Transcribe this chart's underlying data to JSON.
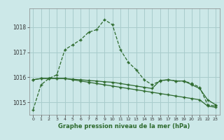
{
  "hours": [
    0,
    1,
    2,
    3,
    4,
    5,
    6,
    7,
    8,
    9,
    10,
    11,
    12,
    13,
    14,
    15,
    16,
    17,
    18,
    19,
    20,
    21,
    22,
    23
  ],
  "line1": [
    1014.7,
    1015.7,
    1015.95,
    1016.1,
    1017.1,
    1017.3,
    1017.5,
    1017.8,
    1017.9,
    1018.3,
    1018.1,
    1017.1,
    1016.6,
    1016.3,
    1015.9,
    1015.7,
    1015.85,
    1015.9,
    1015.85,
    1015.85,
    1015.75,
    1015.6,
    1014.9,
    1014.85
  ],
  "line2": [
    1015.9,
    1015.95,
    1015.95,
    1015.95,
    1015.95,
    1015.92,
    1015.9,
    1015.87,
    1015.85,
    1015.82,
    1015.8,
    1015.75,
    1015.7,
    1015.65,
    1015.6,
    1015.55,
    1015.87,
    1015.9,
    1015.85,
    1015.85,
    1015.7,
    1015.55,
    1015.1,
    1014.9
  ],
  "line3": [
    1015.9,
    1015.95,
    1015.95,
    1015.95,
    1015.95,
    1015.9,
    1015.85,
    1015.8,
    1015.75,
    1015.7,
    1015.65,
    1015.6,
    1015.55,
    1015.5,
    1015.45,
    1015.4,
    1015.35,
    1015.3,
    1015.25,
    1015.2,
    1015.15,
    1015.1,
    1014.85,
    1014.8
  ],
  "line_color": "#2d6a2d",
  "bg_color": "#cce8e8",
  "grid_color": "#a8cccc",
  "xlabel": "Graphe pression niveau de la mer (hPa)",
  "ylim": [
    1014.5,
    1018.75
  ],
  "yticks": [
    1015,
    1016,
    1017,
    1018
  ],
  "xticks": [
    0,
    1,
    2,
    3,
    4,
    5,
    6,
    7,
    8,
    9,
    10,
    11,
    12,
    13,
    14,
    15,
    16,
    17,
    18,
    19,
    20,
    21,
    22,
    23
  ]
}
